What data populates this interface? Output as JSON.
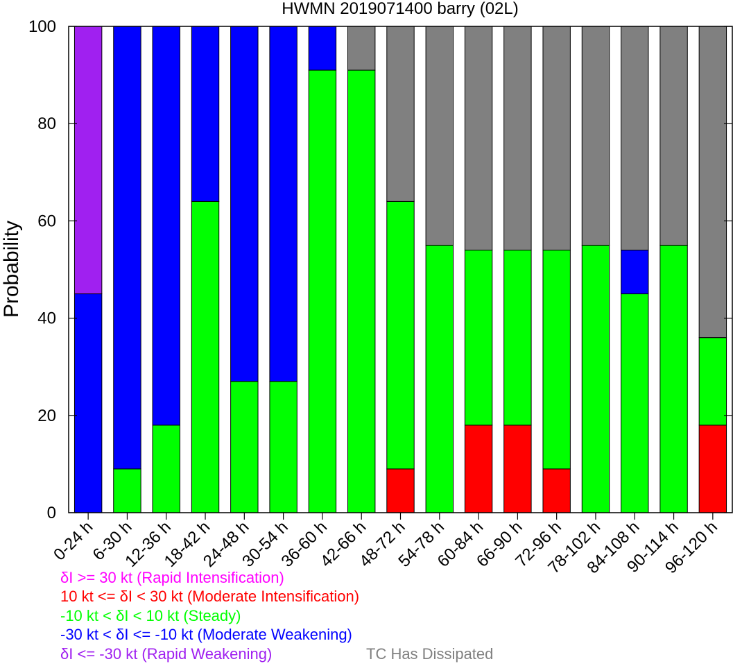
{
  "chart_data": {
    "type": "bar",
    "stacked": true,
    "title": "HWMN 2019071400 barry (02L)",
    "ylabel": "Probability",
    "xlabel": "",
    "ylim": [
      0,
      100
    ],
    "yticks": [
      0,
      20,
      40,
      60,
      80,
      100
    ],
    "grid": false,
    "categories": [
      "0-24 h",
      "6-30 h",
      "12-36 h",
      "18-42 h",
      "24-48 h",
      "30-54 h",
      "36-60 h",
      "42-66 h",
      "48-72 h",
      "54-78 h",
      "60-84 h",
      "66-90 h",
      "72-96 h",
      "78-102 h",
      "84-108 h",
      "90-114 h",
      "96-120 h"
    ],
    "series": [
      {
        "name": "δI <= -30 kt (Rapid Weakening)",
        "key": "rapid_weakening",
        "color": "#a020f0",
        "values": [
          55,
          0,
          0,
          0,
          0,
          0,
          0,
          0,
          0,
          0,
          0,
          0,
          0,
          0,
          0,
          0,
          0
        ]
      },
      {
        "name": "-30 kt < δI <= -10 kt (Moderate Weakening)",
        "key": "moderate_weakening",
        "color": "#0000ff",
        "values": [
          45,
          91,
          82,
          36,
          73,
          73,
          9,
          0,
          0,
          0,
          0,
          0,
          0,
          0,
          9,
          0,
          0
        ]
      },
      {
        "name": "-10 kt < δI < 10 kt (Steady)",
        "key": "steady",
        "color": "#00ff00",
        "values": [
          0,
          9,
          18,
          64,
          27,
          27,
          91,
          91,
          55,
          55,
          36,
          36,
          45,
          55,
          45,
          55,
          18
        ]
      },
      {
        "name": "10 kt <= δI < 30 kt (Moderate Intensification)",
        "key": "moderate_intensification",
        "color": "#ff0000",
        "values": [
          0,
          0,
          0,
          0,
          0,
          0,
          0,
          0,
          9,
          0,
          18,
          18,
          9,
          0,
          0,
          0,
          18
        ]
      },
      {
        "name": "δI >= 30 kt (Rapid Intensification)",
        "key": "rapid_intensification",
        "color": "#ff00ff",
        "values": [
          0,
          0,
          0,
          0,
          0,
          0,
          0,
          0,
          0,
          0,
          0,
          0,
          0,
          0,
          0,
          0,
          0
        ]
      },
      {
        "name": "TC Has Dissipated",
        "key": "dissipated",
        "color": "#808080",
        "values": [
          0,
          0,
          0,
          0,
          0,
          0,
          0,
          9,
          36,
          45,
          46,
          46,
          46,
          45,
          46,
          45,
          64
        ]
      }
    ],
    "stack_order": [
      "moderate_intensification",
      "steady",
      "moderate_weakening",
      "rapid_weakening",
      "rapid_intensification",
      "dissipated"
    ],
    "legend": {
      "lines": [
        {
          "text": "δI >= 30 kt (Rapid Intensification)",
          "color": "#ff00ff"
        },
        {
          "text": "10 kt <= δI < 30 kt (Moderate Intensification)",
          "color": "#ff0000"
        },
        {
          "text": "-10 kt < δI < 10 kt (Steady)",
          "color": "#00ff00"
        },
        {
          "text": "-30 kt < δI <= -10 kt (Moderate Weakening)",
          "color": "#0000ff"
        },
        {
          "text": "δI <= -30 kt (Rapid Weakening)",
          "color": "#a020f0"
        }
      ],
      "dissipated": {
        "text": "TC Has Dissipated",
        "color": "#808080"
      }
    }
  }
}
